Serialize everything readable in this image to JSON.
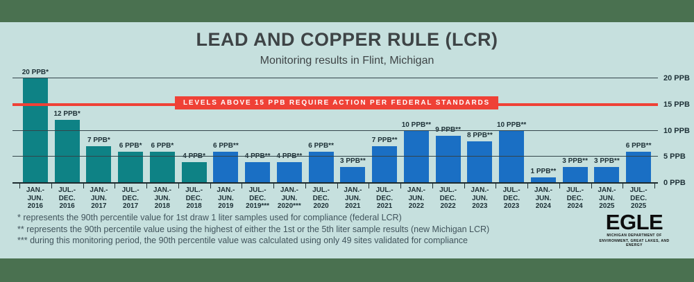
{
  "header": {
    "title": "LEAD AND COPPER RULE (LCR)",
    "subtitle": "Monitoring results in Flint, Michigan"
  },
  "chart_data": {
    "type": "bar",
    "title": "LEAD AND COPPER RULE (LCR)",
    "subtitle": "Monitoring results in Flint, Michigan",
    "ylabel": "PPB",
    "ylim": [
      0,
      20
    ],
    "grid": "horizontal",
    "gridlines_ppb": [
      0,
      5,
      10,
      20
    ],
    "action_level": {
      "value": 15,
      "label": "LEVELS ABOVE 15 PPB REQUIRE ACTION PER FEDERAL STANDARDS",
      "color": "#ef4136"
    },
    "y_ticks": [
      {
        "label": "20 PPB",
        "value": 20
      },
      {
        "label": "15 PPB",
        "value": 15
      },
      {
        "label": "10 PPB",
        "value": 10
      },
      {
        "label": "5 PPB",
        "value": 5
      },
      {
        "label": "0 PPB",
        "value": 0
      }
    ],
    "categories": [
      [
        "JAN.-JUN.",
        "2016"
      ],
      [
        "JUL.-DEC.",
        "2016"
      ],
      [
        "JAN.-JUN.",
        "2017"
      ],
      [
        "JUL.-DEC.",
        "2017"
      ],
      [
        "JAN.-JUN.",
        "2018"
      ],
      [
        "JUL.-DEC.",
        "2018"
      ],
      [
        "JAN.-JUN.",
        "2019"
      ],
      [
        "JUL.-DEC.",
        "2019***"
      ],
      [
        "JAN.-JUN.",
        "2020***"
      ],
      [
        "JUL.-DEC.",
        "2020"
      ],
      [
        "JAN.-JUN.",
        "2021"
      ],
      [
        "JUL.-DEC.",
        "2021"
      ],
      [
        "JAN.-JUN.",
        "2022"
      ],
      [
        "JUL.-DEC.",
        "2022"
      ],
      [
        "JAN.-JUN.",
        "2023"
      ],
      [
        "JUL.-DEC.",
        "2023"
      ],
      [
        "JAN.-JUN.",
        "2024"
      ],
      [
        "JUL.-DEC.",
        "2024"
      ],
      [
        "JAN.-JUN.",
        "2025"
      ],
      [
        "JUL.-DEC.",
        "2025"
      ]
    ],
    "values": [
      20,
      12,
      7,
      6,
      6,
      4,
      6,
      4,
      4,
      6,
      3,
      7,
      10,
      9,
      8,
      10,
      1,
      3,
      3,
      6
    ],
    "bar_labels": [
      "20 PPB*",
      "12 PPB*",
      "7 PPB*",
      "6 PPB*",
      "6 PPB*",
      "4 PPB*",
      "6 PPB**",
      "4 PPB**",
      "4 PPB**",
      "6 PPB**",
      "3 PPB**",
      "7 PPB**",
      "10 PPB**",
      "9 PPB**",
      "8 PPB**",
      "10 PPB**",
      "1 PPB**",
      "3 PPB**",
      "3 PPB**",
      "6 PPB**"
    ],
    "bar_series": [
      "federal",
      "federal",
      "federal",
      "federal",
      "federal",
      "federal",
      "michigan",
      "michigan",
      "michigan",
      "michigan",
      "michigan",
      "michigan",
      "michigan",
      "michigan",
      "michigan",
      "michigan",
      "michigan",
      "michigan",
      "michigan",
      "michigan"
    ],
    "colors": {
      "federal": "#0e8285",
      "michigan": "#1a6fc4"
    },
    "legend_position": "none"
  },
  "footnotes": [
    "* represents the 90th percentile value for 1st draw 1 liter samples used for compliance (federal LCR)",
    "** represents the 90th percentile value using the highest of either the 1st or the 5th liter sample results (new Michigan LCR)",
    "*** during this monitoring period, the 90th percentile value was calculated using only 49 sites validated for compliance"
  ],
  "logo": {
    "name": "EGLE",
    "tagline_line1": "MICHIGAN DEPARTMENT OF",
    "tagline_line2": "ENVIRONMENT, GREAT LAKES, AND ENERGY"
  },
  "theme": {
    "background": "#c6e0de",
    "band_green": "#4a7150",
    "text_dark": "#1d3036",
    "gridline": "#33444a",
    "action_red": "#ef4136"
  }
}
